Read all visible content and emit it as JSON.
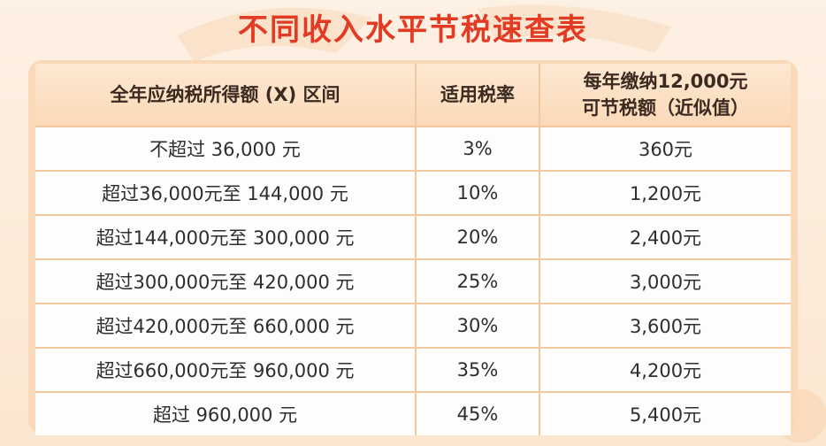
{
  "title": "不同收入水平节税速查表",
  "table": {
    "header": [
      [
        "全年应纳税所得额 (X) 区间"
      ],
      [
        "适用税率"
      ],
      [
        "每年缴纳12,000元",
        "可节税额（近似值）"
      ]
    ],
    "rows": [
      [
        "不超过 36,000 元",
        "3%",
        "360元"
      ],
      [
        "超过36,000元至 144,000 元",
        "10%",
        "1,200元"
      ],
      [
        "超过144,000元至 300,000 元",
        "20%",
        "2,400元"
      ],
      [
        "超过300,000元至 420,000 元",
        "25%",
        "3,000元"
      ],
      [
        "超过420,000元至 660,000 元",
        "30%",
        "3,600元"
      ],
      [
        "超过660,000元至 960,000 元",
        "35%",
        "4,200元"
      ],
      [
        "超过 960,000 元",
        "45%",
        "5,400元"
      ]
    ]
  }
}
